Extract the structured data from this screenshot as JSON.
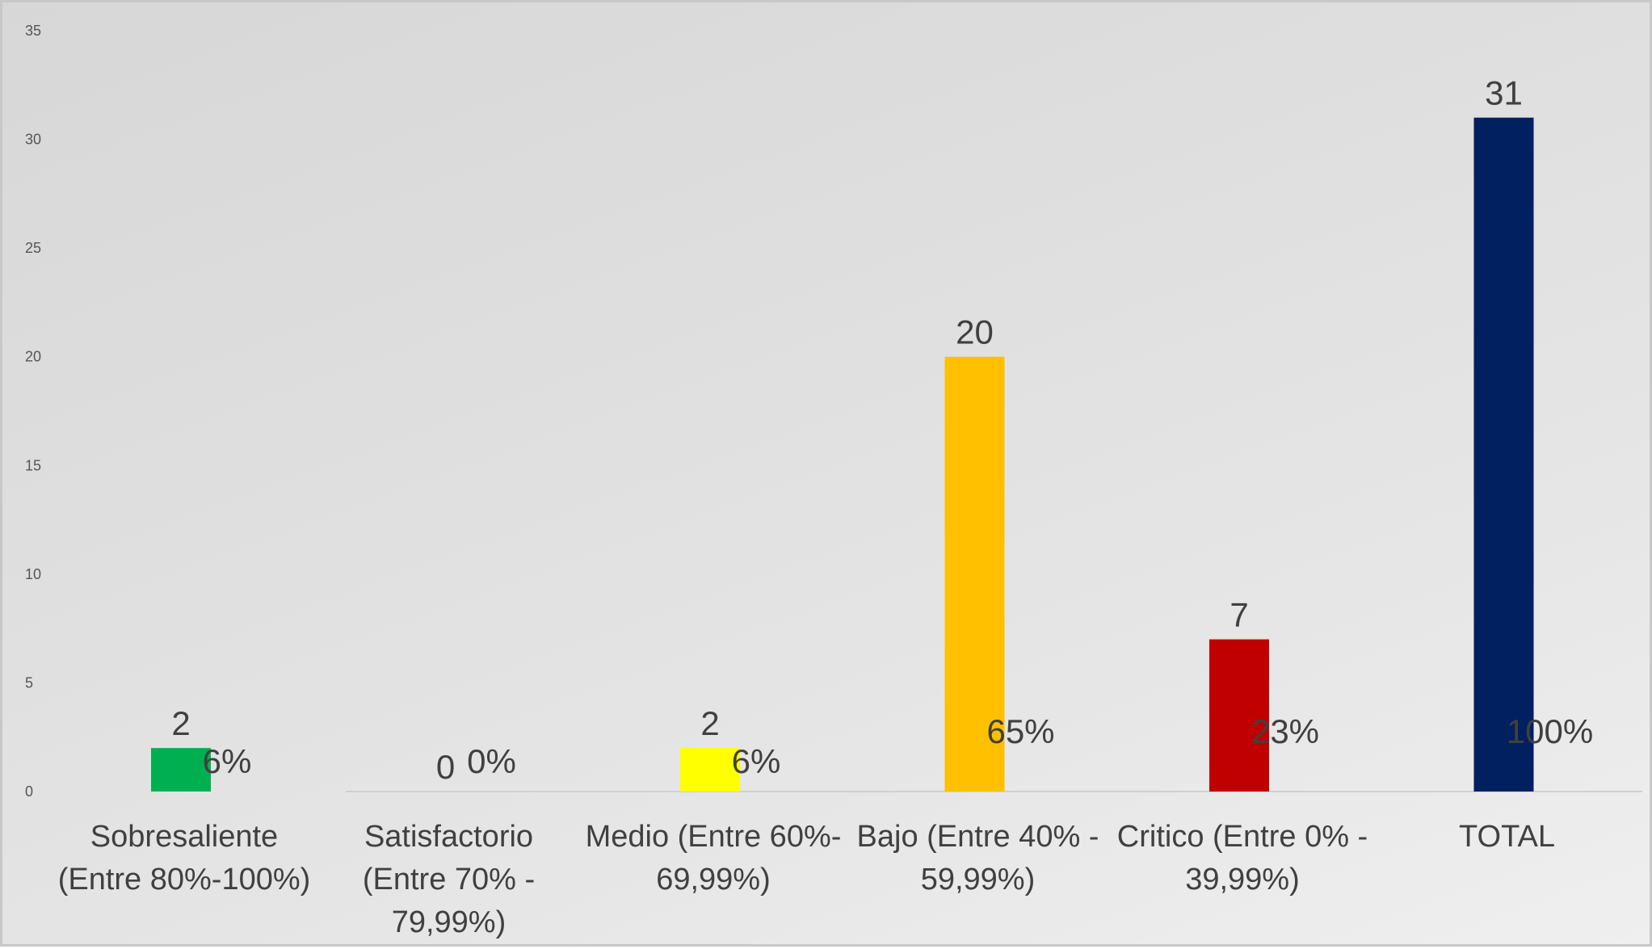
{
  "chart_data": {
    "type": "bar",
    "title": "",
    "xlabel": "",
    "ylabel": "",
    "ylim": [
      0,
      35
    ],
    "yticks": [
      0,
      5,
      10,
      15,
      20,
      25,
      30,
      35
    ],
    "grid": false,
    "legend": "none",
    "categories": [
      [
        "Sobresaliente",
        "(Entre 80%-100%)"
      ],
      [
        "Satisfactorio",
        "(Entre 70% -",
        "79,99%)"
      ],
      [
        "Medio (Entre 60%-",
        "69,99%)"
      ],
      [
        "Bajo (Entre 40% -",
        "59,99%)"
      ],
      [
        "Critico (Entre 0% -",
        "39,99%)"
      ],
      [
        "TOTAL"
      ]
    ],
    "series": [
      {
        "values": [
          2,
          0,
          2,
          20,
          7,
          31
        ],
        "value_labels": [
          "2",
          "0",
          "2",
          "20",
          "7",
          "31"
        ],
        "colors": [
          "#00b050",
          "#bfbfbf",
          "#ffff00",
          "#ffc000",
          "#c00000",
          "#002060"
        ]
      },
      {
        "values": [
          0.06,
          0,
          0.06,
          0.65,
          0.23,
          1.0
        ],
        "value_labels": [
          "6%",
          "0%",
          "6%",
          "65%",
          "23%",
          "100%"
        ]
      }
    ],
    "axis_color": "#d0d0d0"
  }
}
